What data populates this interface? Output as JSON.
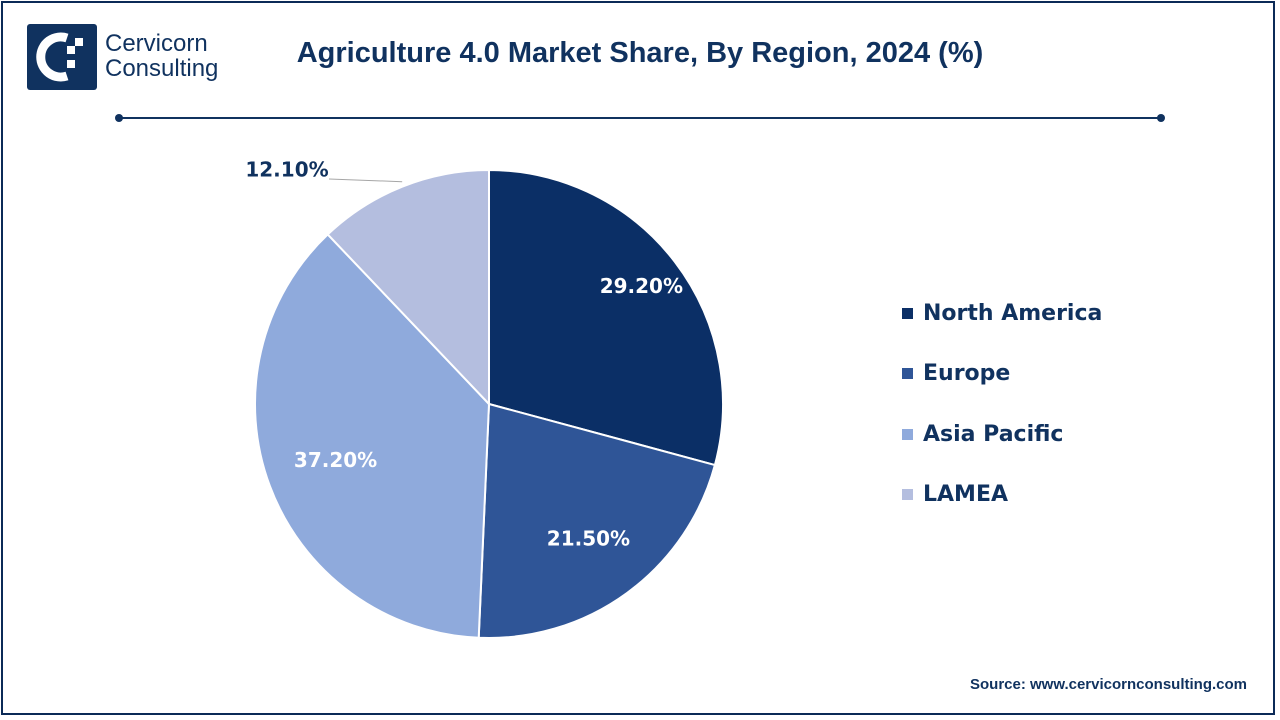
{
  "brand": {
    "line1": "Cervicorn",
    "line2": "Consulting",
    "color": "#10325f"
  },
  "source_text": "Source: www.cervicornconsulting.com",
  "chart_data": {
    "type": "pie",
    "title": "Agriculture 4.0 Market Share, By Region, 2024 (%)",
    "unit": "%",
    "slices": [
      {
        "label": "North America",
        "value": 29.2,
        "display": "29.20%",
        "color": "#0b2f66"
      },
      {
        "label": "Europe",
        "value": 21.5,
        "display": "21.50%",
        "color": "#2f5597"
      },
      {
        "label": "Asia Pacific",
        "value": 37.2,
        "display": "37.20%",
        "color": "#8faadc"
      },
      {
        "label": "LAMEA",
        "value": 12.1,
        "display": "12.10%",
        "color": "#b4bedf"
      }
    ],
    "start_angle": "12 o'clock, clockwise",
    "legend_position": "right"
  }
}
